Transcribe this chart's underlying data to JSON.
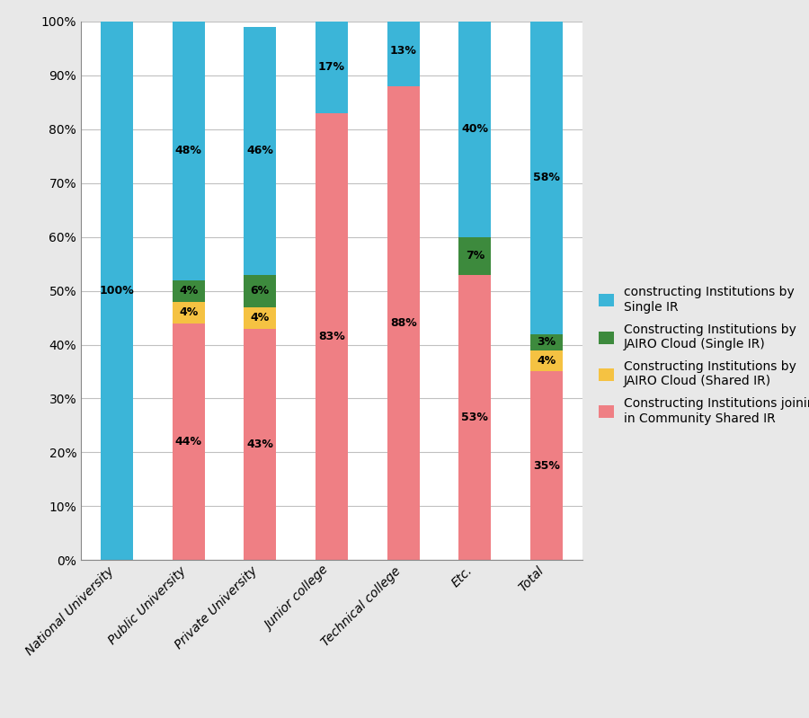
{
  "categories": [
    "National University",
    "Public University",
    "Private University",
    "Junior college",
    "Technical college",
    "Etc.",
    "Total"
  ],
  "series": {
    "Community Shared IR": [
      0,
      44,
      43,
      83,
      88,
      53,
      35
    ],
    "JAIRO Cloud Shared IR": [
      0,
      4,
      4,
      0,
      0,
      0,
      4
    ],
    "JAIRO Cloud Single IR": [
      0,
      4,
      6,
      0,
      0,
      7,
      3
    ],
    "Single IR": [
      100,
      48,
      46,
      17,
      13,
      40,
      58
    ]
  },
  "colors": {
    "Community Shared IR": "#EF7F84",
    "JAIRO Cloud Shared IR": "#F5C242",
    "JAIRO Cloud Single IR": "#3D8A3D",
    "Single IR": "#3BB5D8"
  },
  "labels": {
    "Community Shared IR": [
      null,
      44,
      43,
      83,
      88,
      53,
      35
    ],
    "JAIRO Cloud Shared IR": [
      null,
      4,
      4,
      null,
      null,
      null,
      4
    ],
    "JAIRO Cloud Single IR": [
      null,
      4,
      6,
      null,
      null,
      7,
      3
    ],
    "Single IR": [
      100,
      48,
      46,
      17,
      13,
      40,
      58
    ]
  },
  "legend_labels": [
    "constructing Institutions by\nSingle IR",
    "Constructing Institutions by\nJAIRO Cloud (Single IR)",
    "Constructing Institutions by\nJAIRO Cloud (Shared IR)",
    "Constructing Institutions joining\nin Community Shared IR"
  ],
  "legend_colors": [
    "#3BB5D8",
    "#3D8A3D",
    "#F5C242",
    "#EF7F84"
  ],
  "ylim": [
    0,
    100
  ],
  "yticks": [
    0,
    10,
    20,
    30,
    40,
    50,
    60,
    70,
    80,
    90,
    100
  ],
  "ytick_labels": [
    "0%",
    "10%",
    "20%",
    "30%",
    "40%",
    "50%",
    "60%",
    "70%",
    "80%",
    "90%",
    "100%"
  ],
  "bar_width": 0.45,
  "background_color": "#e8e8e8",
  "plot_background": "#ffffff",
  "label_fontsize": 9,
  "tick_fontsize": 10,
  "legend_fontsize": 10
}
